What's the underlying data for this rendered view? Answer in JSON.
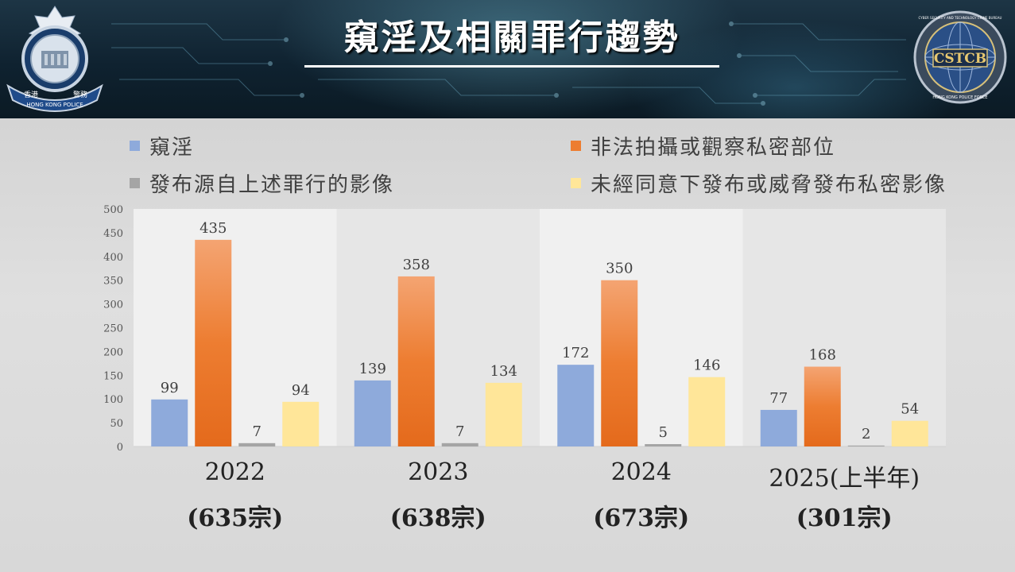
{
  "header": {
    "title": "窺淫及相關罪行趨勢",
    "left_emblem_name": "hong-kong-police-emblem",
    "left_emblem_text": [
      "香港",
      "警務",
      "HONG KONG POLICE"
    ],
    "right_emblem_name": "cyber-security-technology-crime-bureau-emblem",
    "right_emblem_text": [
      "CYBER SECURITY AND TECHNOLOGY CRIME BUREAU",
      "CSTCB",
      "HONG KONG POLICE FORCE"
    ]
  },
  "colors": {
    "series_1": "#8eaadb",
    "series_2": "#ed7d31",
    "series_3": "#a5a5a5",
    "series_4": "#ffe699",
    "header_bg": "#0f2230",
    "plot_bg": "#f0f0f0"
  },
  "chart_data": {
    "type": "bar",
    "title": "",
    "xlabel": "",
    "ylabel": "",
    "ylim": [
      0,
      500
    ],
    "y_ticks": [
      "0",
      "50",
      "100",
      "150",
      "200",
      "250",
      "300",
      "350",
      "400",
      "450",
      "500"
    ],
    "grid": false,
    "legend_position": "top",
    "categories": [
      "2022",
      "2023",
      "2024",
      "2025(上半年)"
    ],
    "category_totals": [
      "(635宗)",
      "(638宗)",
      "(673宗)",
      "(301宗)"
    ],
    "series": [
      {
        "name": "窺淫",
        "values": [
          99,
          139,
          172,
          77
        ]
      },
      {
        "name": "非法拍攝或觀察私密部位",
        "values": [
          435,
          358,
          350,
          168
        ]
      },
      {
        "name": "發布源自上述罪行的影像",
        "values": [
          7,
          7,
          5,
          2
        ]
      },
      {
        "name": "未經同意下發布或威脅發布私密影像",
        "values": [
          94,
          134,
          146,
          54
        ]
      }
    ]
  }
}
